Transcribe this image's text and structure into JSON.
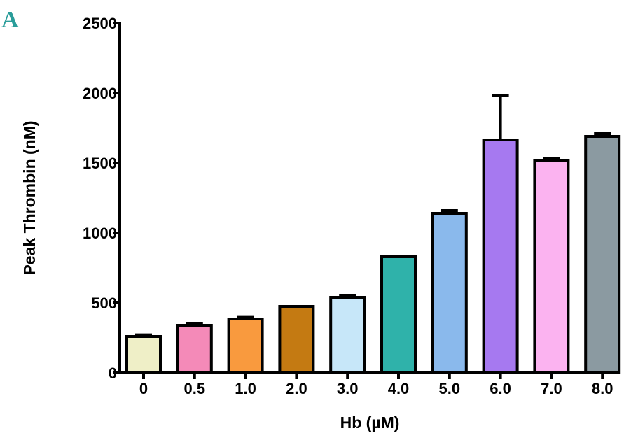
{
  "panel_label": "A",
  "chart_data": {
    "type": "bar",
    "title": "",
    "xlabel": "Hb (µM)",
    "ylabel": "Peak Thrombin (nM)",
    "ylim": [
      0,
      2500
    ],
    "yticks": [
      "0",
      "500",
      "1000",
      "1500",
      "2000",
      "2500"
    ],
    "ytick_values": [
      0,
      500,
      1000,
      1500,
      2000,
      2500
    ],
    "categories": [
      "0",
      "0.5",
      "1.0",
      "2.0",
      "3.0",
      "4.0",
      "5.0",
      "6.0",
      "7.0",
      "8.0"
    ],
    "values": [
      260,
      340,
      385,
      475,
      540,
      830,
      1140,
      1665,
      1515,
      1690
    ],
    "errors": [
      12,
      10,
      12,
      0,
      10,
      0,
      20,
      315,
      15,
      20
    ],
    "colors": [
      "#efefc7",
      "#f48ab8",
      "#f99a3e",
      "#c47a12",
      "#c7e7f9",
      "#2fb2aa",
      "#8ab9ec",
      "#a679f0",
      "#fbb3f0",
      "#8b9aa1"
    ]
  }
}
